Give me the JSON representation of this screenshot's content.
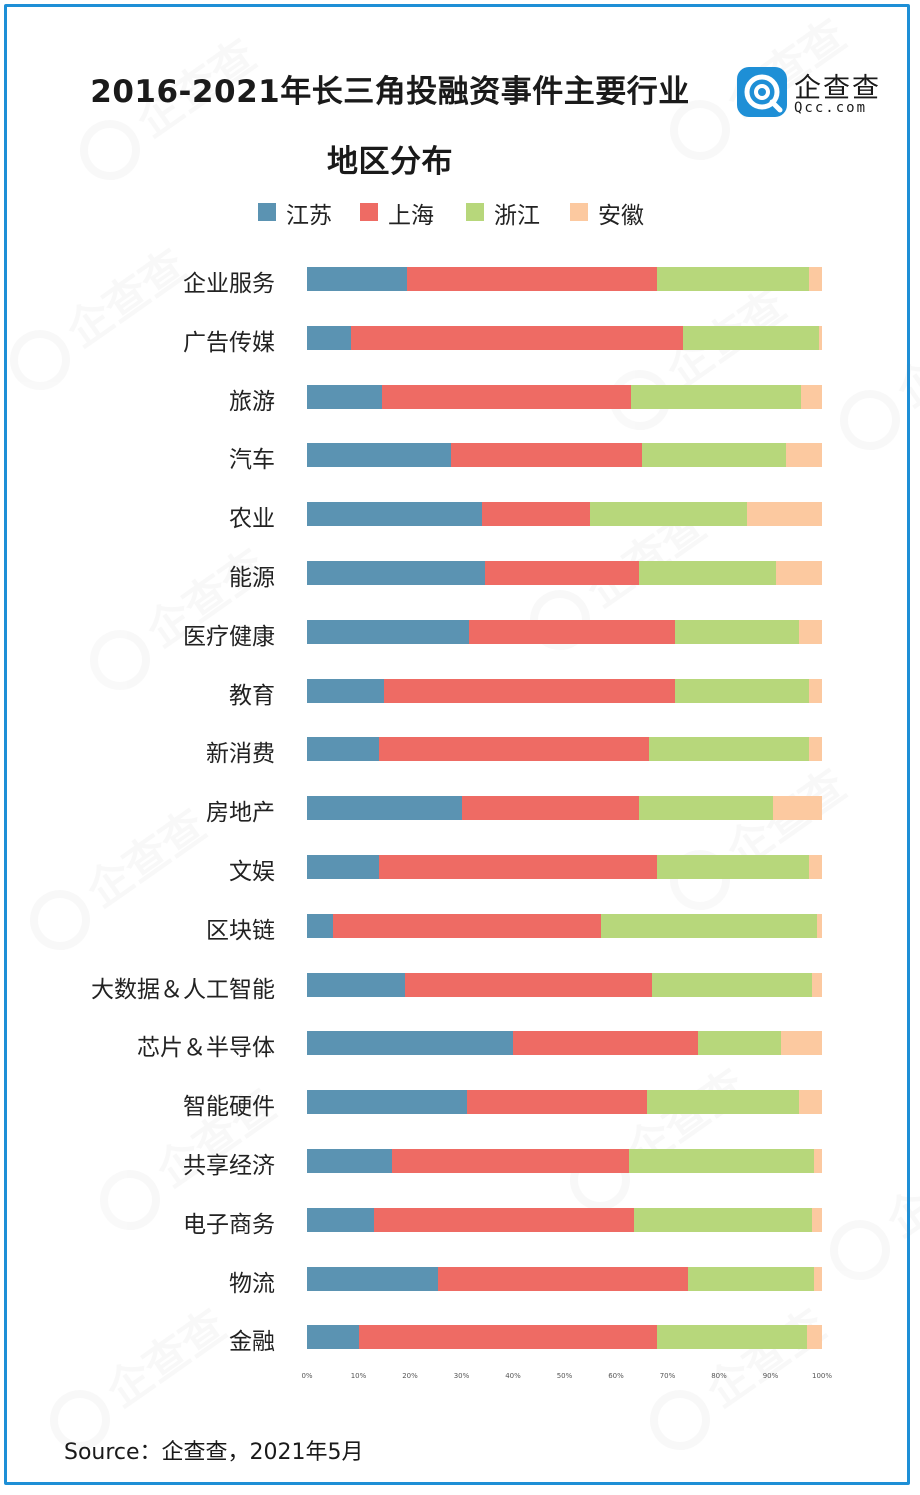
{
  "title_line1": "2016-2021年长三角投融资事件主要行业",
  "title_line2": "地区分布",
  "logo": {
    "cn": "企查查",
    "en": "Qcc.com",
    "color": "#1e8fd6"
  },
  "legend": [
    {
      "label": "江苏",
      "color": "#5b93b2"
    },
    {
      "label": "上海",
      "color": "#ee6b64"
    },
    {
      "label": "浙江",
      "color": "#b7d77b"
    },
    {
      "label": "安徽",
      "color": "#fcc9a0"
    }
  ],
  "watermark_text": "企查查",
  "source": "Source：企查查，2021年5月",
  "chart_data": {
    "type": "bar",
    "orientation": "horizontal",
    "stacked": true,
    "percent": true,
    "categories": [
      "企业服务",
      "广告传媒",
      "旅游",
      "汽车",
      "农业",
      "能源",
      "医疗健康",
      "教育",
      "新消费",
      "房地产",
      "文娱",
      "区块链",
      "大数据＆人工智能",
      "芯片＆半导体",
      "智能硬件",
      "共享经济",
      "电子商务",
      "物流",
      "金融"
    ],
    "series": [
      {
        "name": "江苏",
        "values": [
          19.5,
          8.5,
          14.5,
          28.0,
          34.0,
          34.5,
          31.5,
          15.0,
          14.0,
          30.0,
          14.0,
          5.0,
          19.0,
          40.0,
          31.0,
          16.5,
          13.0,
          25.5,
          10.0
        ]
      },
      {
        "name": "上海",
        "values": [
          48.5,
          64.5,
          48.5,
          37.0,
          21.0,
          30.0,
          40.0,
          56.5,
          52.5,
          34.5,
          54.0,
          52.0,
          48.0,
          36.0,
          35.0,
          46.0,
          50.5,
          48.5,
          58.0
        ]
      },
      {
        "name": "浙江",
        "values": [
          29.5,
          26.5,
          33.0,
          28.0,
          30.5,
          26.5,
          24.0,
          26.0,
          31.0,
          26.0,
          29.5,
          42.0,
          31.0,
          16.0,
          29.5,
          36.0,
          34.5,
          24.5,
          29.0
        ]
      },
      {
        "name": "安徽",
        "values": [
          2.5,
          0.5,
          4.0,
          7.0,
          14.5,
          9.0,
          4.5,
          2.5,
          2.5,
          9.5,
          2.5,
          1.0,
          2.0,
          8.0,
          4.5,
          1.5,
          2.0,
          1.5,
          3.0
        ]
      }
    ],
    "x_ticks": [
      "0%",
      "10%",
      "20%",
      "30%",
      "40%",
      "50%",
      "60%",
      "70%",
      "80%",
      "90%",
      "100%"
    ],
    "xlim": [
      0,
      100
    ],
    "grid": false,
    "legend_position": "top"
  }
}
